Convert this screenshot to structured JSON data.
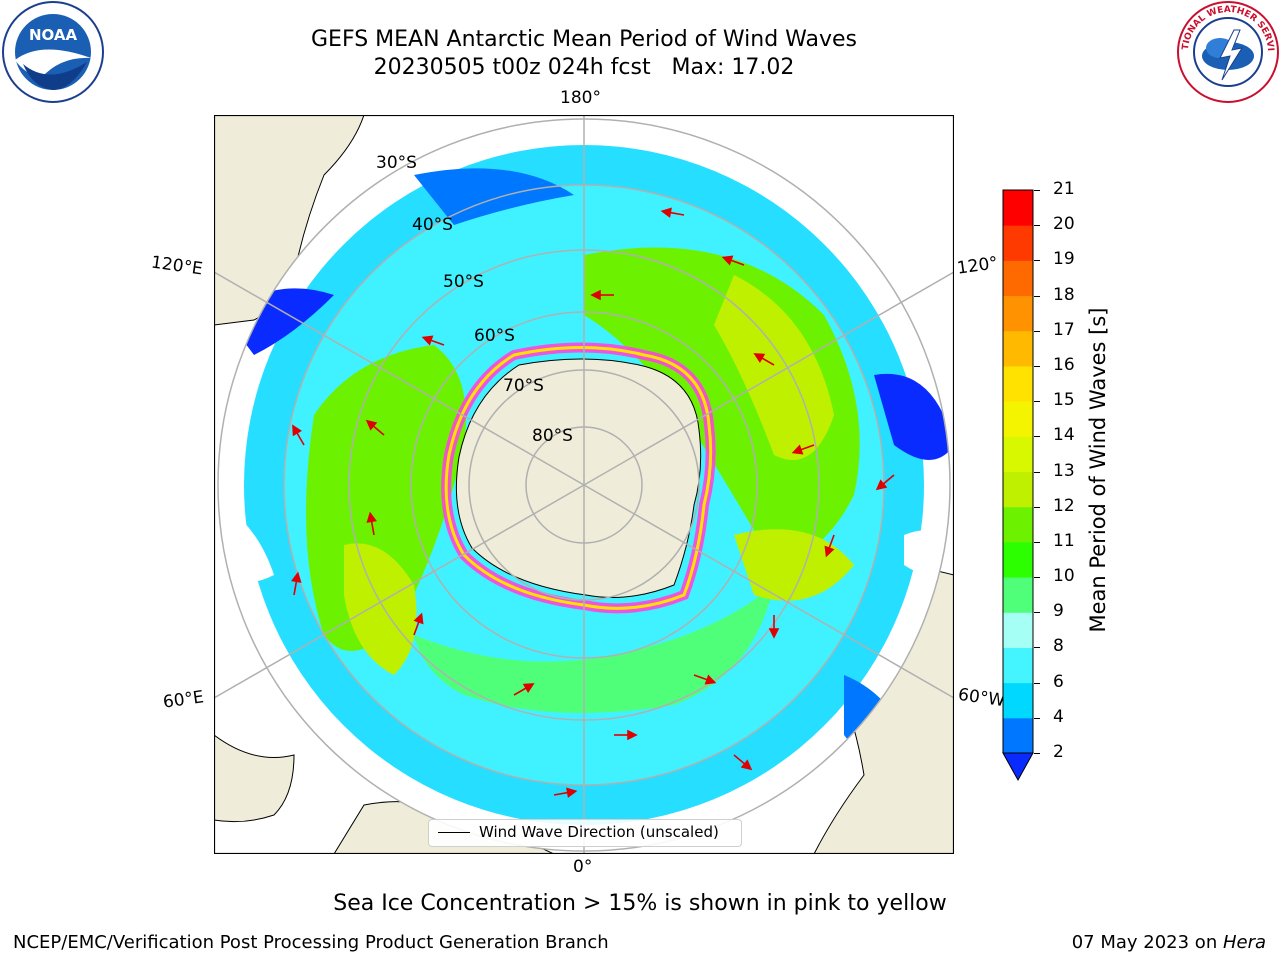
{
  "title": {
    "line1": "GEFS MEAN Antarctic Mean Period of Wind Waves",
    "line2": "20230505 t00z 024h fcst   Max: 17.02"
  },
  "map": {
    "longitude_labels": {
      "top": "180°",
      "bottom": "0°",
      "left_upper": "120°E",
      "left_lower": "60°E",
      "right_upper": "120°",
      "right_lower": "60°W"
    },
    "latitude_labels": [
      "30°S",
      "40°S",
      "50°S",
      "60°S",
      "70°S",
      "80°S"
    ],
    "legend_label": "Wind Wave Direction (unscaled)",
    "colors": {
      "land": "#efedd9",
      "antarctica": "#efedd9",
      "sea_ice": "#ff44dd",
      "grid": "#b0b0b0",
      "arrow": "#ff0000"
    }
  },
  "colorbar": {
    "title": "Mean Period of Wind Waves [s]",
    "ticks": [
      "2",
      "4",
      "6",
      "8",
      "9",
      "10",
      "11",
      "12",
      "13",
      "14",
      "15",
      "16",
      "17",
      "18",
      "19",
      "20",
      "21"
    ],
    "colors": [
      "#0a2bff",
      "#0077ff",
      "#00d8ff",
      "#44f4ff",
      "#a6fff4",
      "#4fff7a",
      "#2cff00",
      "#6cf200",
      "#bff000",
      "#d8f800",
      "#f4f400",
      "#ffe200",
      "#ffba00",
      "#ff9200",
      "#ff6a00",
      "#ff3a00",
      "#ff0000"
    ]
  },
  "note": "Sea Ice Concentration > 15% is shown in pink to yellow",
  "footer": {
    "left": "NCEP/EMC/Verification Post Processing Product Generation Branch",
    "right_prefix": "07 May 2023 on ",
    "right_machine": "Hera"
  },
  "logos": {
    "left": "NOAA",
    "right": "NATIONAL WEATHER SERVICE"
  }
}
